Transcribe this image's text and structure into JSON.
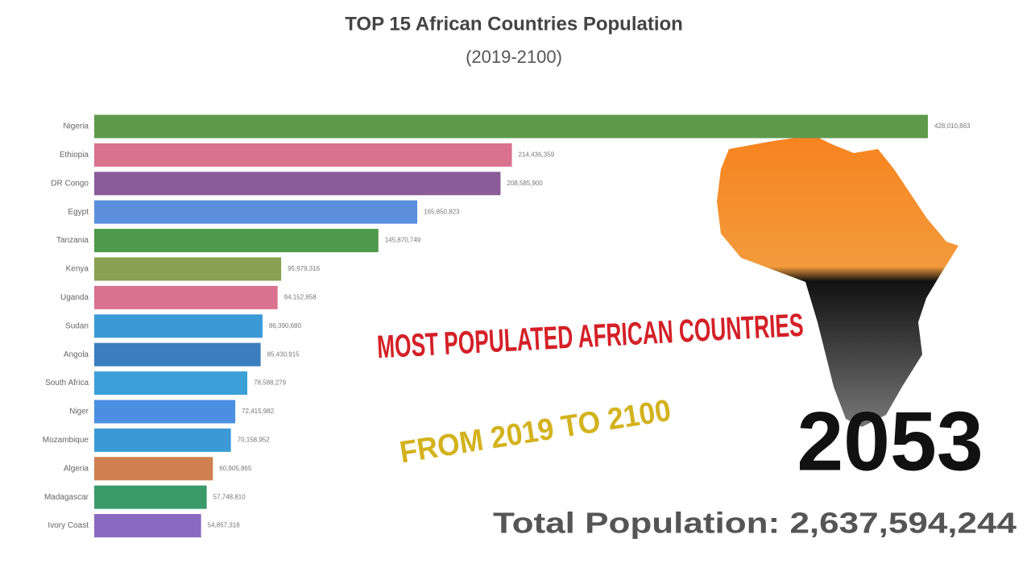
{
  "chart_data": {
    "type": "bar",
    "orientation": "horizontal",
    "title": "TOP 15 African Countries Population",
    "subtitle": "(2019-2100)",
    "categories": [
      "Nigeria",
      "Ethiopia",
      "DR Congo",
      "Egypt",
      "Tanzania",
      "Kenya",
      "Uganda",
      "Sudan",
      "Angola",
      "South Africa",
      "Niger",
      "Mozambique",
      "Algeria",
      "Madagascar",
      "Ivory Coast"
    ],
    "values": [
      428010863,
      214436359,
      208585900,
      165850823,
      145870749,
      95979316,
      94152858,
      86390680,
      85430915,
      78588279,
      72415982,
      70158952,
      60905865,
      57748810,
      54857318
    ],
    "value_labels": [
      "428,010,863",
      "214,436,359",
      "208,585,900",
      "165,850,823",
      "145,870,749",
      "95,979,316",
      "94,152,858",
      "86,390,680",
      "85,430,915",
      "78,588,279",
      "72,415,982",
      "70,158,952",
      "60,905,865",
      "57,748,810",
      "54,857,318"
    ],
    "colors": [
      "#5f9a4c",
      "#d9728f",
      "#8a5c98",
      "#5b8fdd",
      "#4c9a4a",
      "#8aa052",
      "#d9728f",
      "#3b9ad6",
      "#3a7ec0",
      "#3ba0d8",
      "#4a8fe0",
      "#3b9ad6",
      "#d08050",
      "#3a9a6a",
      "#8a6ac0"
    ],
    "annotations": [
      "MOST POPULATED AFRICAN COUNTRIES",
      "FROM 2019 TO 2100"
    ],
    "year": "2053",
    "total": "Total Population: 2,637,594,244"
  }
}
